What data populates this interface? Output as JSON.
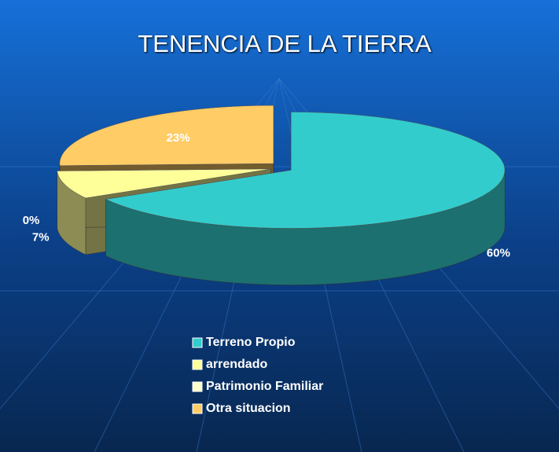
{
  "chart_data": {
    "type": "pie3d",
    "title": "TENENCIA DE LA TIERRA",
    "categories": [
      "Terreno Propio",
      "arrendado",
      "Patrimonio Familiar",
      "Otra situacion"
    ],
    "values": [
      60,
      7,
      0,
      23
    ],
    "value_labels": [
      "60%",
      "7%",
      "0%",
      "23%"
    ],
    "colors": [
      "#33cccc",
      "#ffff99",
      "#ffffcc",
      "#ffcc66"
    ],
    "legend": "bottom"
  }
}
